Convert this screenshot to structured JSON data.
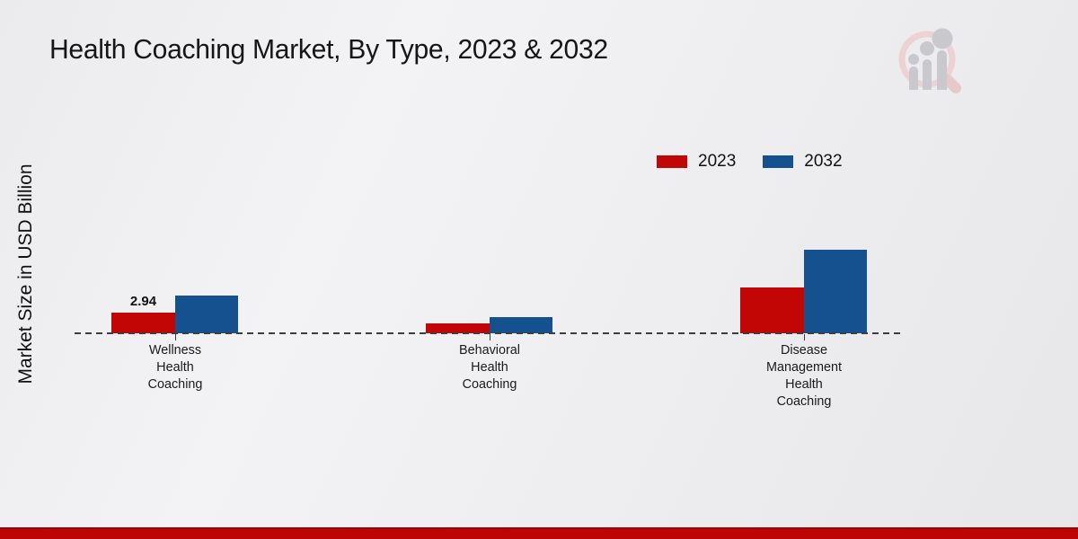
{
  "page": {
    "title": "Health Coaching Market, By Type, 2023 & 2032"
  },
  "y_axis_label": "Market Size in USD Billion",
  "legend": {
    "position": "top-right",
    "items": [
      {
        "label": "2023",
        "color": "#c20606"
      },
      {
        "label": "2032",
        "color": "#14518e"
      }
    ]
  },
  "branding": {
    "logo_icon": "magnifier-bar-chart-watermark-logo"
  },
  "footer": {
    "accent_bar_color": "#bd0505"
  },
  "chart_data": {
    "type": "bar",
    "title": "Health Coaching Market, By Type, 2023 & 2032",
    "ylabel": "Market Size in USD Billion",
    "categories": [
      "Wellness Health Coaching",
      "Behavioral Health Coaching",
      "Disease Management Health Coaching"
    ],
    "series": [
      {
        "name": "2023",
        "color": "#c20606",
        "values": [
          2.94,
          1.4,
          6.5
        ]
      },
      {
        "name": "2032",
        "color": "#14518e",
        "values": [
          5.4,
          2.3,
          11.9
        ]
      }
    ],
    "data_labels": [
      [
        "2.94",
        "",
        ""
      ],
      [
        "",
        "",
        ""
      ]
    ],
    "baseline_style": "dashed",
    "grid": false,
    "y_axis_ticks_visible": false,
    "legend_position": "top-right"
  }
}
